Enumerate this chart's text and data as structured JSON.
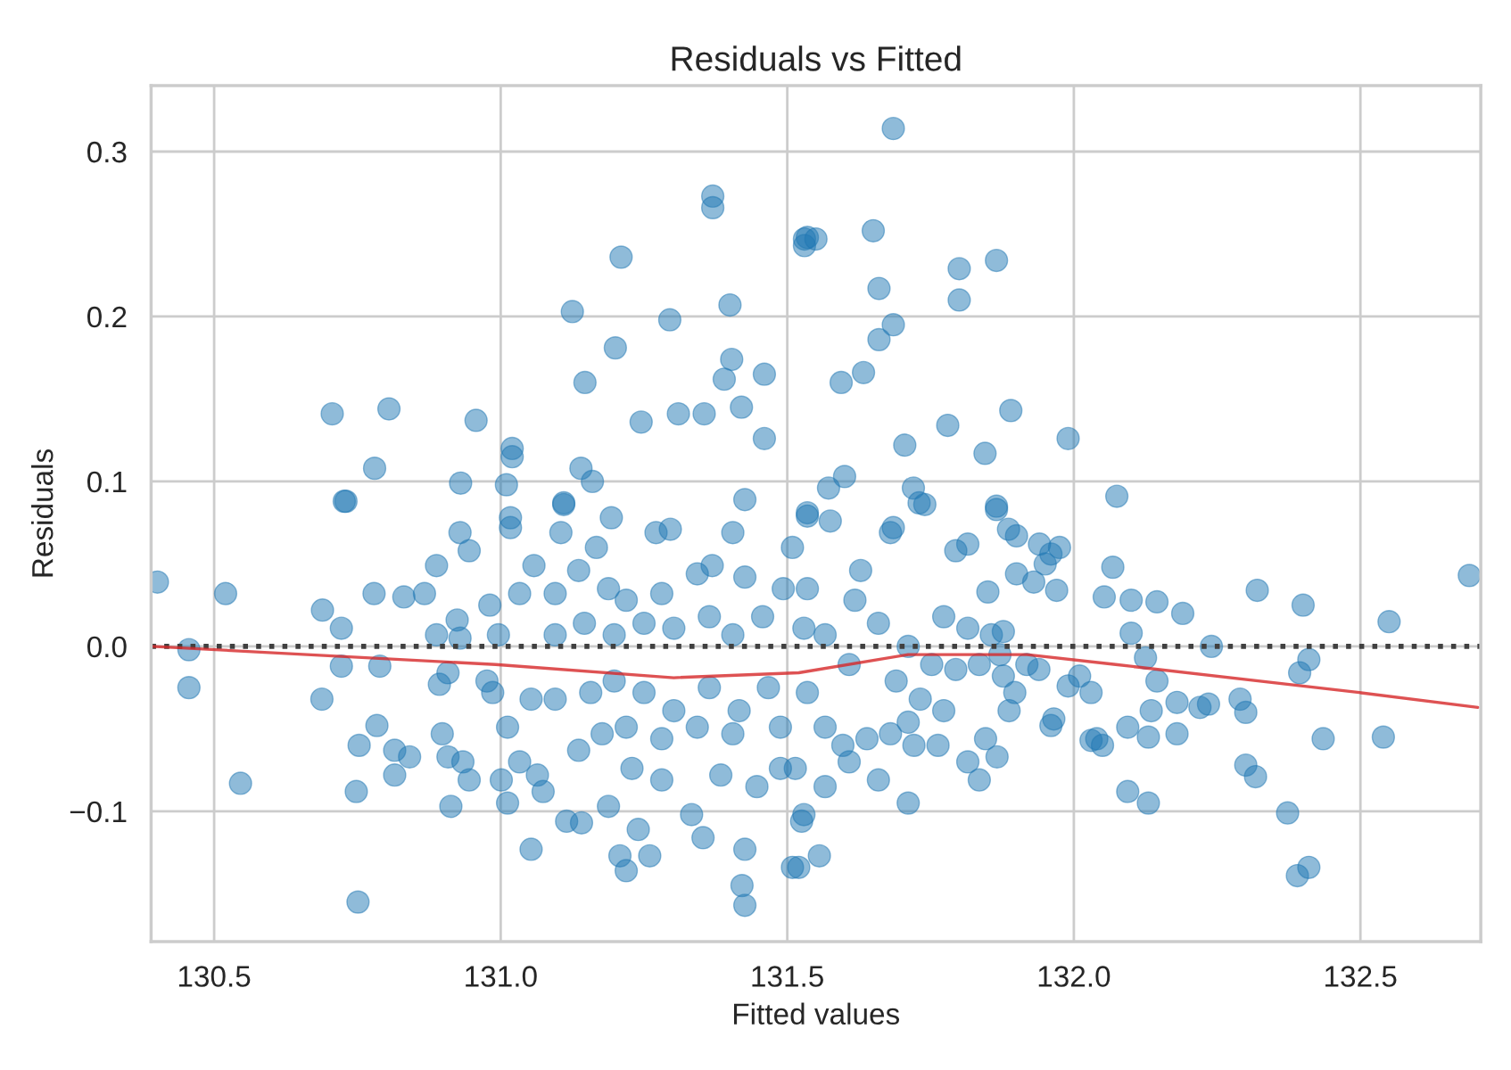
{
  "chart_data": {
    "type": "scatter",
    "title": "Residuals vs Fitted",
    "xlabel": "Fitted values",
    "ylabel": "Residuals",
    "xlim": [
      130.39,
      132.71
    ],
    "ylim": [
      -0.179,
      0.34
    ],
    "xticks": [
      {
        "value": 130.5,
        "label": "130.5"
      },
      {
        "value": 131.0,
        "label": "131.0"
      },
      {
        "value": 131.5,
        "label": "131.5"
      },
      {
        "value": 132.0,
        "label": "132.0"
      },
      {
        "value": 132.5,
        "label": "132.5"
      }
    ],
    "yticks": [
      {
        "value": -0.1,
        "label": "−0.1"
      },
      {
        "value": 0.0,
        "label": "0.0"
      },
      {
        "value": 0.1,
        "label": "0.1"
      },
      {
        "value": 0.2,
        "label": "0.2"
      },
      {
        "value": 0.3,
        "label": "0.3"
      }
    ],
    "grid": true,
    "ref_lines": [
      {
        "axis": "y",
        "value": 0,
        "label": null,
        "color": "#404040",
        "line_style": "dotted"
      }
    ],
    "series": [
      {
        "marker": "circle",
        "color": "#1f77b4",
        "x": [
          131.37,
          131.37,
          131.21,
          131.125,
          131.295,
          131.4,
          131.2,
          131.147,
          131.403,
          131.39,
          131.46,
          131.42,
          131.46,
          130.706,
          130.805,
          130.957,
          131.245,
          131.31,
          131.355,
          130.78,
          130.73,
          130.93,
          131.02,
          131.02,
          131.01,
          131.14,
          131.16,
          131.11,
          131.426,
          131.53,
          131.535,
          131.685,
          131.53,
          131.55,
          131.65,
          131.8,
          131.865,
          131.66,
          131.8,
          131.685,
          131.66,
          131.633,
          131.594,
          131.89,
          131.78,
          131.705,
          131.845,
          131.99,
          132.075,
          131.572,
          131.6,
          131.72,
          131.73,
          131.74,
          131.865,
          132.69,
          132.55,
          132.32,
          132.4,
          132.54,
          132.435,
          132.373,
          132.39,
          132.41,
          132.3,
          132.317,
          132.29,
          132.3,
          132.394,
          132.41,
          132.24,
          132.19,
          132.145,
          132.1,
          132.068,
          132.053,
          132.1,
          132.125,
          132.145,
          132.135,
          132.18,
          132.22,
          132.235,
          132.13,
          132.18,
          132.094,
          132.03,
          132.05,
          132.04,
          132.094,
          132.13,
          131.99,
          132.03,
          132.01,
          131.96,
          131.965,
          131.97,
          131.95,
          131.975,
          131.94,
          131.96,
          131.9,
          131.93,
          131.9,
          131.886,
          131.85,
          131.815,
          131.794,
          131.68,
          131.685,
          131.535,
          131.575,
          131.865,
          131.773,
          131.815,
          131.856,
          131.877,
          131.711,
          131.752,
          131.794,
          131.835,
          131.877,
          131.897,
          131.69,
          131.732,
          131.773,
          131.711,
          131.68,
          131.721,
          131.763,
          131.815,
          131.835,
          131.866,
          131.711,
          131.639,
          131.608,
          131.566,
          131.556,
          131.52,
          131.525,
          131.514,
          131.535,
          131.566,
          131.608,
          131.659,
          131.618,
          131.628,
          131.535,
          131.659,
          131.597,
          131.846,
          131.887,
          131.918,
          131.939,
          131.871,
          131.566,
          130.52,
          130.546,
          130.751,
          130.689,
          130.688,
          130.456,
          130.456,
          130.401,
          130.727,
          130.722,
          130.722,
          130.779,
          130.831,
          130.867,
          130.888,
          130.929,
          130.945,
          130.789,
          130.784,
          130.753,
          130.815,
          130.815,
          130.841,
          130.898,
          130.908,
          130.934,
          130.945,
          130.913,
          130.748,
          130.888,
          130.924,
          130.929,
          130.893,
          130.908,
          130.981,
          130.996,
          130.976,
          130.986,
          131.017,
          131.017,
          131.105,
          131.11,
          131.193,
          131.167,
          131.033,
          131.058,
          131.095,
          131.136,
          131.188,
          131.219,
          131.271,
          131.296,
          131.281,
          131.343,
          131.369,
          131.405,
          131.426,
          131.493,
          131.509,
          131.535,
          131.095,
          131.146,
          131.198,
          131.25,
          131.302,
          131.364,
          131.405,
          131.457,
          131.529,
          131.053,
          131.095,
          131.157,
          131.198,
          131.25,
          131.302,
          131.364,
          131.416,
          131.467,
          131.488,
          131.405,
          131.343,
          131.281,
          131.219,
          131.177,
          131.136,
          131.012,
          131.033,
          131.001,
          131.012,
          131.064,
          131.074,
          131.115,
          131.141,
          131.188,
          131.053,
          131.208,
          131.219,
          131.26,
          131.24,
          131.229,
          131.281,
          131.333,
          131.353,
          131.426,
          131.421,
          131.426,
          131.509,
          131.447,
          131.488,
          131.384,
          131.529
        ],
        "values": [
          0.273,
          0.266,
          0.236,
          0.203,
          0.198,
          0.207,
          0.181,
          0.16,
          0.174,
          0.162,
          0.165,
          0.145,
          0.126,
          0.141,
          0.144,
          0.137,
          0.136,
          0.141,
          0.141,
          0.108,
          0.088,
          0.099,
          0.12,
          0.115,
          0.098,
          0.108,
          0.1,
          0.087,
          0.089,
          0.243,
          0.248,
          0.314,
          0.247,
          0.247,
          0.252,
          0.229,
          0.234,
          0.217,
          0.21,
          0.195,
          0.186,
          0.166,
          0.16,
          0.143,
          0.134,
          0.122,
          0.117,
          0.126,
          0.091,
          0.096,
          0.103,
          0.096,
          0.087,
          0.086,
          0.085,
          0.043,
          0.015,
          0.034,
          0.025,
          -0.055,
          -0.056,
          -0.101,
          -0.139,
          -0.134,
          -0.072,
          -0.079,
          -0.032,
          -0.04,
          -0.016,
          -0.008,
          0.0,
          0.02,
          0.027,
          0.028,
          0.048,
          0.03,
          0.008,
          -0.007,
          -0.021,
          -0.039,
          -0.034,
          -0.037,
          -0.035,
          -0.055,
          -0.053,
          -0.049,
          -0.057,
          -0.06,
          -0.056,
          -0.088,
          -0.095,
          -0.024,
          -0.028,
          -0.018,
          -0.048,
          -0.044,
          0.034,
          0.05,
          0.06,
          0.062,
          0.056,
          0.044,
          0.039,
          0.067,
          0.071,
          0.033,
          0.062,
          0.058,
          0.069,
          0.072,
          0.081,
          0.076,
          0.083,
          0.018,
          0.011,
          0.007,
          0.009,
          0.0,
          -0.011,
          -0.014,
          -0.011,
          -0.018,
          -0.028,
          -0.021,
          -0.032,
          -0.039,
          -0.046,
          -0.053,
          -0.06,
          -0.06,
          -0.07,
          -0.081,
          -0.067,
          -0.095,
          -0.056,
          -0.07,
          -0.085,
          -0.127,
          -0.134,
          -0.106,
          -0.074,
          -0.028,
          0.007,
          -0.011,
          0.014,
          0.028,
          0.046,
          0.035,
          -0.081,
          -0.06,
          -0.056,
          -0.039,
          -0.011,
          -0.014,
          -0.005,
          -0.049,
          0.032,
          -0.083,
          -0.155,
          0.022,
          -0.032,
          -0.002,
          -0.025,
          0.039,
          0.088,
          0.011,
          -0.012,
          0.032,
          0.03,
          0.032,
          0.049,
          0.069,
          0.058,
          -0.012,
          -0.048,
          -0.06,
          -0.063,
          -0.078,
          -0.067,
          -0.053,
          -0.067,
          -0.07,
          -0.081,
          -0.097,
          -0.088,
          0.007,
          0.016,
          0.005,
          -0.023,
          -0.016,
          0.025,
          0.007,
          -0.021,
          -0.028,
          0.072,
          0.078,
          0.069,
          0.086,
          0.078,
          0.06,
          0.032,
          0.049,
          0.032,
          0.046,
          0.035,
          0.028,
          0.069,
          0.071,
          0.032,
          0.044,
          0.049,
          0.069,
          0.042,
          0.035,
          0.06,
          0.079,
          0.007,
          0.014,
          0.007,
          0.014,
          0.011,
          0.018,
          0.007,
          0.018,
          0.011,
          -0.032,
          -0.032,
          -0.028,
          -0.021,
          -0.028,
          -0.039,
          -0.025,
          -0.039,
          -0.025,
          -0.049,
          -0.053,
          -0.049,
          -0.056,
          -0.049,
          -0.053,
          -0.063,
          -0.049,
          -0.07,
          -0.081,
          -0.095,
          -0.078,
          -0.088,
          -0.106,
          -0.107,
          -0.097,
          -0.123,
          -0.127,
          -0.136,
          -0.127,
          -0.111,
          -0.074,
          -0.081,
          -0.102,
          -0.116,
          -0.123,
          -0.145,
          -0.157,
          -0.134,
          -0.085,
          -0.074,
          -0.078,
          -0.102
        ]
      },
      {
        "type": "line",
        "color": "#d62728",
        "x": [
          130.391,
          130.991,
          131.302,
          131.52,
          131.711,
          131.918,
          132.073,
          132.498,
          132.705
        ],
        "values": [
          0.0,
          -0.011,
          -0.019,
          -0.016,
          -0.005,
          -0.005,
          -0.011,
          -0.028,
          -0.037
        ]
      }
    ]
  }
}
